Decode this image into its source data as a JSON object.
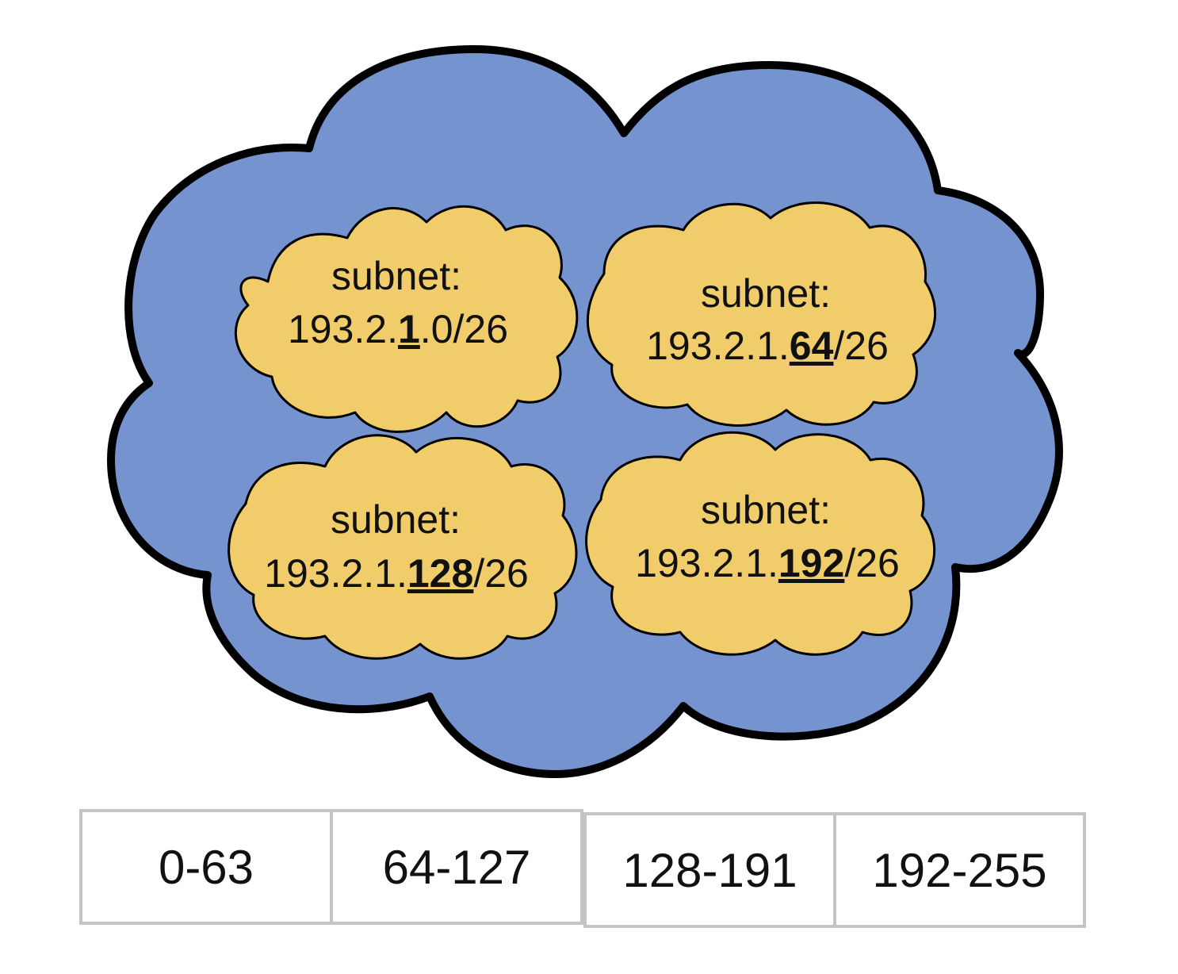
{
  "colors": {
    "outer_cloud_fill": "#7493cf",
    "outer_cloud_stroke": "#000000",
    "subnet_cloud_fill": "#f0cc6a",
    "subnet_cloud_stroke": "#000000",
    "range_border": "#c4c4c4"
  },
  "subnets": [
    {
      "heading": "subnet:",
      "prefix": "193.2.",
      "highlight": "1",
      "suffix": ".0/26"
    },
    {
      "heading": "subnet:",
      "prefix": "193.2.1.",
      "highlight": "64",
      "suffix": "/26"
    },
    {
      "heading": "subnet:",
      "prefix": "193.2.1.",
      "highlight": "128",
      "suffix": "/26"
    },
    {
      "heading": "subnet:",
      "prefix": "193.2.1.",
      "highlight": "192",
      "suffix": "/26"
    }
  ],
  "ranges": [
    "0-63",
    "64-127",
    "128-191",
    "192-255"
  ]
}
